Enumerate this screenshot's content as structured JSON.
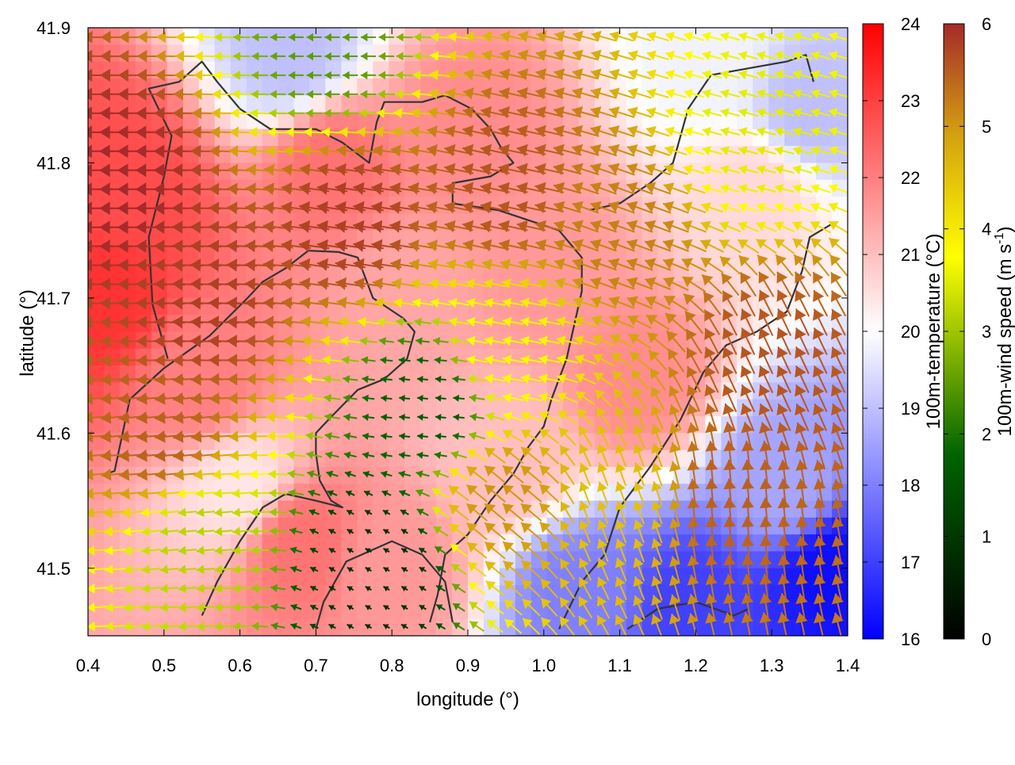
{
  "chart_data": {
    "type": "heatmap",
    "title": "",
    "xlabel": "longitude (°)",
    "ylabel": "latitude (°)",
    "xlim": [
      0.4,
      1.4
    ],
    "ylim": [
      41.45,
      41.9
    ],
    "x_ticks": [
      "0.4",
      "0.5",
      "0.6",
      "0.7",
      "0.8",
      "0.9",
      "1.0",
      "1.1",
      "1.2",
      "1.3",
      "1.4"
    ],
    "y_ticks": [
      "41.5",
      "41.6",
      "41.7",
      "41.8",
      "41.9"
    ],
    "grid": false,
    "overlay": "wind vectors (arrows) colored by speed, with dark coastline/contour lines",
    "colorbars": [
      {
        "label": "100m-temperature (°C)",
        "range": [
          16,
          24
        ],
        "ticks": [
          "16",
          "17",
          "18",
          "19",
          "20",
          "21",
          "22",
          "23",
          "24"
        ],
        "colors": [
          "#0000ff",
          "#ffffff",
          "#ff0000"
        ]
      },
      {
        "label_main": "100m-wind speed (m s",
        "label_sup": "-1",
        "label_end": ")",
        "range": [
          0,
          6
        ],
        "ticks": [
          "0",
          "1",
          "2",
          "3",
          "4",
          "5",
          "6"
        ],
        "colors": [
          "#000000",
          "#006400",
          "#ffff00",
          "#d4a010",
          "#a52a2a"
        ]
      }
    ],
    "temperature_blobs": [
      {
        "lon": 0.45,
        "lat": 41.78,
        "t": 22.8
      },
      {
        "lon": 0.42,
        "lat": 41.7,
        "t": 23.2
      },
      {
        "lon": 0.55,
        "lat": 41.64,
        "t": 22.0
      },
      {
        "lon": 0.72,
        "lat": 41.8,
        "t": 22.2
      },
      {
        "lon": 0.9,
        "lat": 41.82,
        "t": 21.8
      },
      {
        "lon": 0.82,
        "lat": 41.7,
        "t": 21.4
      },
      {
        "lon": 1.0,
        "lat": 41.72,
        "t": 21.6
      },
      {
        "lon": 1.12,
        "lat": 41.64,
        "t": 21.8
      },
      {
        "lon": 0.68,
        "lat": 41.52,
        "t": 22.2
      },
      {
        "lon": 0.8,
        "lat": 41.5,
        "t": 21.6
      },
      {
        "lon": 0.95,
        "lat": 41.58,
        "t": 21.0
      },
      {
        "lon": 1.28,
        "lat": 41.78,
        "t": 20.6
      },
      {
        "lon": 1.35,
        "lat": 41.84,
        "t": 19.0
      },
      {
        "lon": 1.32,
        "lat": 41.56,
        "t": 18.6
      },
      {
        "lon": 1.38,
        "lat": 41.5,
        "t": 16.2
      },
      {
        "lon": 1.2,
        "lat": 41.47,
        "t": 17.0
      },
      {
        "lon": 1.05,
        "lat": 41.48,
        "t": 18.0
      },
      {
        "lon": 0.67,
        "lat": 41.88,
        "t": 19.0
      },
      {
        "lon": 0.6,
        "lat": 41.56,
        "t": 20.4
      },
      {
        "lon": 1.22,
        "lat": 41.88,
        "t": 19.8
      }
    ],
    "wind_regions": [
      {
        "lon": 0.45,
        "lat": 41.78,
        "speed": 6.0,
        "dir": 180
      },
      {
        "lon": 0.55,
        "lat": 41.7,
        "speed": 5.8,
        "dir": 178
      },
      {
        "lon": 0.75,
        "lat": 41.76,
        "speed": 5.8,
        "dir": 172
      },
      {
        "lon": 0.95,
        "lat": 41.78,
        "speed": 5.6,
        "dir": 168
      },
      {
        "lon": 1.1,
        "lat": 41.75,
        "speed": 5.2,
        "dir": 160
      },
      {
        "lon": 1.28,
        "lat": 41.82,
        "speed": 3.5,
        "dir": 165
      },
      {
        "lon": 1.3,
        "lat": 41.65,
        "speed": 5.6,
        "dir": 115
      },
      {
        "lon": 1.25,
        "lat": 41.55,
        "speed": 5.5,
        "dir": 95
      },
      {
        "lon": 1.1,
        "lat": 41.55,
        "speed": 4.5,
        "dir": 110
      },
      {
        "lon": 0.85,
        "lat": 41.62,
        "speed": 1.6,
        "dir": 175
      },
      {
        "lon": 0.78,
        "lat": 41.5,
        "speed": 0.8,
        "dir": 150
      },
      {
        "lon": 0.55,
        "lat": 41.52,
        "speed": 3.2,
        "dir": 185
      },
      {
        "lon": 0.5,
        "lat": 41.6,
        "speed": 5.5,
        "dir": 185
      },
      {
        "lon": 0.72,
        "lat": 41.88,
        "speed": 2.5,
        "dir": 180
      },
      {
        "lon": 0.95,
        "lat": 41.55,
        "speed": 5.0,
        "dir": 140
      },
      {
        "lon": 0.95,
        "lat": 41.66,
        "speed": 3.8,
        "dir": 170
      }
    ],
    "contour_lines": [
      [
        [
          0.425,
          41.57
        ],
        [
          0.435,
          41.572
        ],
        [
          0.455,
          41.625
        ],
        [
          0.5,
          41.648
        ],
        [
          0.56,
          41.672
        ],
        [
          0.61,
          41.7
        ],
        [
          0.63,
          41.712
        ],
        [
          0.66,
          41.722
        ],
        [
          0.69,
          41.735
        ],
        [
          0.73,
          41.734
        ],
        [
          0.755,
          41.73
        ],
        [
          0.775,
          41.7
        ],
        [
          0.815,
          41.685
        ],
        [
          0.83,
          41.675
        ],
        [
          0.82,
          41.655
        ],
        [
          0.79,
          41.64
        ],
        [
          0.755,
          41.632
        ],
        [
          0.72,
          41.612
        ],
        [
          0.7,
          41.6
        ],
        [
          0.7,
          41.585
        ],
        [
          0.705,
          41.565
        ],
        [
          0.72,
          41.55
        ],
        [
          0.735,
          41.545
        ],
        [
          0.7,
          41.55
        ],
        [
          0.66,
          41.555
        ],
        [
          0.63,
          41.545
        ],
        [
          0.6,
          41.52
        ],
        [
          0.57,
          41.49
        ],
        [
          0.55,
          41.465
        ]
      ],
      [
        [
          0.505,
          41.655
        ],
        [
          0.485,
          41.695
        ],
        [
          0.48,
          41.745
        ],
        [
          0.5,
          41.79
        ],
        [
          0.51,
          41.82
        ],
        [
          0.48,
          41.855
        ],
        [
          0.52,
          41.86
        ],
        [
          0.55,
          41.875
        ],
        [
          0.57,
          41.86
        ],
        [
          0.6,
          41.84
        ],
        [
          0.64,
          41.825
        ],
        [
          0.7,
          41.825
        ],
        [
          0.735,
          41.815
        ],
        [
          0.77,
          41.8
        ],
        [
          0.78,
          41.83
        ],
        [
          0.79,
          41.845
        ],
        [
          0.84,
          41.845
        ],
        [
          0.87,
          41.85
        ],
        [
          0.905,
          41.84
        ],
        [
          0.93,
          41.825
        ],
        [
          0.945,
          41.81
        ],
        [
          0.96,
          41.8
        ],
        [
          0.93,
          41.79
        ],
        [
          0.88,
          41.785
        ],
        [
          0.88,
          41.77
        ],
        [
          0.94,
          41.765
        ],
        [
          1.02,
          41.75
        ],
        [
          1.05,
          41.73
        ],
        [
          1.05,
          41.705
        ],
        [
          1.04,
          41.68
        ],
        [
          1.03,
          41.655
        ],
        [
          1.01,
          41.625
        ],
        [
          1.0,
          41.605
        ],
        [
          0.98,
          41.59
        ],
        [
          0.96,
          41.57
        ],
        [
          0.93,
          41.55
        ],
        [
          0.9,
          41.525
        ],
        [
          0.87,
          41.51
        ],
        [
          0.86,
          41.48
        ],
        [
          0.85,
          41.46
        ]
      ],
      [
        [
          1.02,
          41.455
        ],
        [
          1.05,
          41.49
        ],
        [
          1.08,
          41.51
        ],
        [
          1.1,
          41.545
        ],
        [
          1.14,
          41.575
        ],
        [
          1.18,
          41.61
        ],
        [
          1.21,
          41.645
        ],
        [
          1.24,
          41.665
        ],
        [
          1.28,
          41.675
        ],
        [
          1.32,
          41.69
        ],
        [
          1.34,
          41.72
        ],
        [
          1.35,
          41.745
        ],
        [
          1.38,
          41.755
        ]
      ],
      [
        [
          1.06,
          41.765
        ],
        [
          1.1,
          41.77
        ],
        [
          1.14,
          41.785
        ],
        [
          1.17,
          41.8
        ],
        [
          1.19,
          41.84
        ],
        [
          1.22,
          41.865
        ],
        [
          1.27,
          41.87
        ],
        [
          1.32,
          41.875
        ],
        [
          1.345,
          41.88
        ],
        [
          1.355,
          41.86
        ]
      ],
      [
        [
          0.88,
          41.46
        ],
        [
          0.87,
          41.49
        ],
        [
          0.84,
          41.51
        ],
        [
          0.8,
          41.52
        ],
        [
          0.74,
          41.505
        ],
        [
          0.71,
          41.475
        ],
        [
          0.7,
          41.455
        ]
      ],
      [
        [
          1.11,
          41.455
        ],
        [
          1.15,
          41.47
        ],
        [
          1.2,
          41.475
        ],
        [
          1.25,
          41.465
        ],
        [
          1.27,
          41.47
        ]
      ]
    ]
  }
}
